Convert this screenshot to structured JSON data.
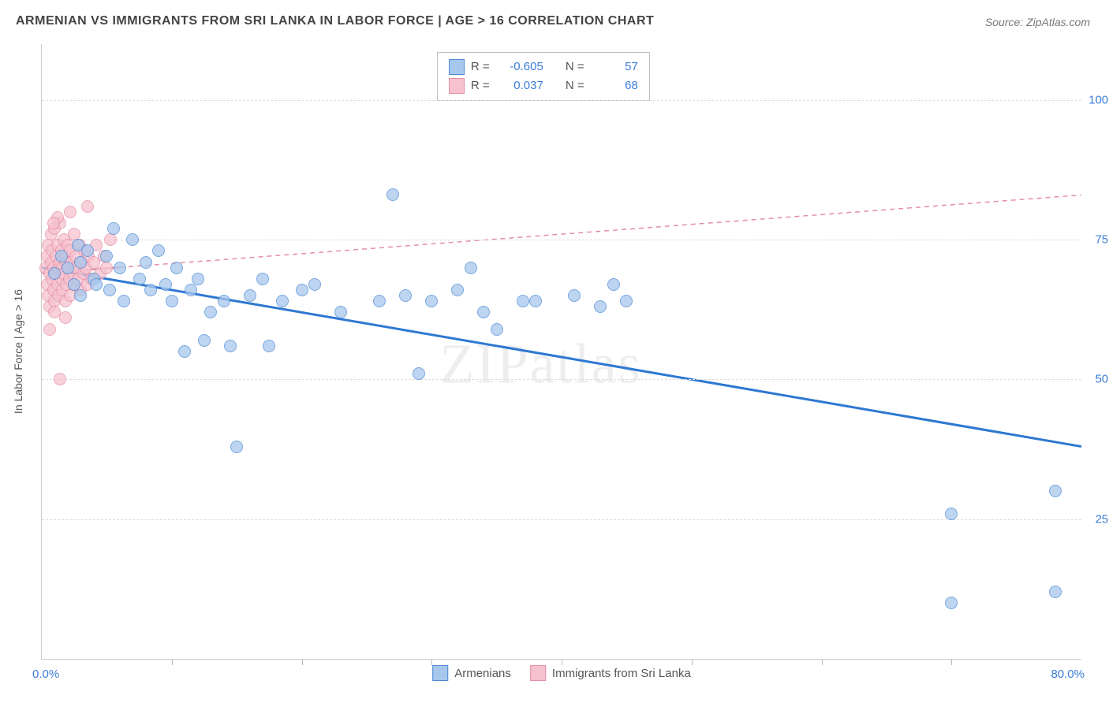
{
  "title": "ARMENIAN VS IMMIGRANTS FROM SRI LANKA IN LABOR FORCE | AGE > 16 CORRELATION CHART",
  "source": "Source: ZipAtlas.com",
  "watermark": "ZIPatlas",
  "y_axis_label": "In Labor Force | Age > 16",
  "x_range": [
    0,
    80
  ],
  "y_range": [
    0,
    110
  ],
  "x_start_label": "0.0%",
  "x_end_label": "80.0%",
  "x_tick_positions": [
    10,
    20,
    30,
    40,
    50,
    60,
    70
  ],
  "y_ticks": [
    {
      "v": 25,
      "label": "25.0%"
    },
    {
      "v": 50,
      "label": "50.0%"
    },
    {
      "v": 75,
      "label": "75.0%"
    },
    {
      "v": 100,
      "label": "100.0%"
    }
  ],
  "grid_h": [
    25,
    50,
    75,
    100
  ],
  "colors": {
    "blue_fill": "#a8c7ec",
    "blue_stroke": "#4d8bd6",
    "pink_fill": "#f6c2cf",
    "pink_stroke": "#e38fa6",
    "blue_line": "#2e78d2",
    "pink_line": "#e38fa6",
    "tick_text": "#3b7dd8"
  },
  "marker_radius": 8,
  "marker_stroke_width": 1,
  "marker_opacity": 0.75,
  "series": [
    {
      "name": "Armenians",
      "color_fill": "#a8c7ec",
      "color_stroke": "#4d8bd6",
      "R": "-0.605",
      "N": "57",
      "reg_line": {
        "x1": 0,
        "y1": 70,
        "x2": 80,
        "y2": 38,
        "dash": "0",
        "width": 3,
        "color": "#2e78d2",
        "solid_until_x": 45
      },
      "points": [
        [
          1,
          69
        ],
        [
          1.5,
          72
        ],
        [
          2,
          70
        ],
        [
          2.5,
          67
        ],
        [
          2.8,
          74
        ],
        [
          3,
          65
        ],
        [
          3,
          71
        ],
        [
          3.5,
          73
        ],
        [
          4,
          68
        ],
        [
          4.2,
          67
        ],
        [
          5,
          72
        ],
        [
          5.2,
          66
        ],
        [
          5.5,
          77
        ],
        [
          6,
          70
        ],
        [
          6.3,
          64
        ],
        [
          7,
          75
        ],
        [
          7.5,
          68
        ],
        [
          8,
          71
        ],
        [
          8.4,
          66
        ],
        [
          9,
          73
        ],
        [
          9.5,
          67
        ],
        [
          10,
          64
        ],
        [
          10.4,
          70
        ],
        [
          11,
          55
        ],
        [
          11.5,
          66
        ],
        [
          12,
          68
        ],
        [
          12.5,
          57
        ],
        [
          13,
          62
        ],
        [
          14,
          64
        ],
        [
          14.5,
          56
        ],
        [
          15,
          38
        ],
        [
          16,
          65
        ],
        [
          17,
          68
        ],
        [
          17.5,
          56
        ],
        [
          18.5,
          64
        ],
        [
          20,
          66
        ],
        [
          21,
          67
        ],
        [
          23,
          62
        ],
        [
          26,
          64
        ],
        [
          27,
          83
        ],
        [
          28,
          65
        ],
        [
          29,
          51
        ],
        [
          30,
          64
        ],
        [
          32,
          66
        ],
        [
          33,
          70
        ],
        [
          34,
          62
        ],
        [
          35,
          59
        ],
        [
          37,
          64
        ],
        [
          38,
          64
        ],
        [
          41,
          65
        ],
        [
          43,
          63
        ],
        [
          44,
          67
        ],
        [
          45,
          64
        ],
        [
          70,
          26
        ],
        [
          70,
          10
        ],
        [
          78,
          30
        ],
        [
          78,
          12
        ]
      ]
    },
    {
      "name": "Immigrants from Sri Lanka",
      "color_fill": "#f6c2cf",
      "color_stroke": "#e38fa6",
      "R": "0.037",
      "N": "68",
      "reg_line": {
        "x1": 0,
        "y1": 69,
        "x2": 80,
        "y2": 83,
        "dash": "6 5",
        "width": 1.5,
        "color": "#e38fa6",
        "solid_until_x": 6
      },
      "points": [
        [
          0.3,
          70
        ],
        [
          0.4,
          67
        ],
        [
          0.4,
          72
        ],
        [
          0.5,
          65
        ],
        [
          0.5,
          74
        ],
        [
          0.6,
          69
        ],
        [
          0.6,
          63
        ],
        [
          0.7,
          71
        ],
        [
          0.7,
          76
        ],
        [
          0.8,
          68
        ],
        [
          0.8,
          73
        ],
        [
          0.9,
          66
        ],
        [
          0.9,
          70
        ],
        [
          1.0,
          64
        ],
        [
          1.0,
          77
        ],
        [
          1.1,
          69
        ],
        [
          1.1,
          72
        ],
        [
          1.2,
          67
        ],
        [
          1.2,
          74
        ],
        [
          1.3,
          70
        ],
        [
          1.3,
          65
        ],
        [
          1.4,
          71
        ],
        [
          1.4,
          78
        ],
        [
          1.5,
          68
        ],
        [
          1.5,
          73
        ],
        [
          1.6,
          66
        ],
        [
          1.6,
          70
        ],
        [
          1.7,
          75
        ],
        [
          1.7,
          69
        ],
        [
          1.8,
          72
        ],
        [
          1.8,
          64
        ],
        [
          1.9,
          71
        ],
        [
          1.9,
          67
        ],
        [
          2.0,
          74
        ],
        [
          2.0,
          70
        ],
        [
          2.1,
          68
        ],
        [
          2.2,
          73
        ],
        [
          2.2,
          65
        ],
        [
          2.3,
          71
        ],
        [
          2.4,
          69
        ],
        [
          2.5,
          76
        ],
        [
          2.5,
          67
        ],
        [
          2.6,
          72
        ],
        [
          2.7,
          70
        ],
        [
          2.8,
          68
        ],
        [
          2.9,
          74
        ],
        [
          3.0,
          66
        ],
        [
          3.1,
          71
        ],
        [
          3.2,
          69
        ],
        [
          3.3,
          73
        ],
        [
          3.4,
          70
        ],
        [
          3.5,
          67
        ],
        [
          3.6,
          72
        ],
        [
          3.8,
          68
        ],
        [
          4.0,
          71
        ],
        [
          4.2,
          74
        ],
        [
          4.5,
          69
        ],
        [
          4.8,
          72
        ],
        [
          5.0,
          70
        ],
        [
          5.3,
          75
        ],
        [
          2.2,
          80
        ],
        [
          1.8,
          61
        ],
        [
          0.6,
          59
        ],
        [
          3.5,
          81
        ],
        [
          1.2,
          79
        ],
        [
          0.9,
          78
        ],
        [
          1.4,
          50
        ],
        [
          1.0,
          62
        ]
      ]
    }
  ],
  "legend_bottom": [
    {
      "label": "Armenians",
      "fill": "#a8c7ec",
      "stroke": "#4d8bd6"
    },
    {
      "label": "Immigrants from Sri Lanka",
      "fill": "#f6c2cf",
      "stroke": "#e38fa6"
    }
  ],
  "stat_labels": {
    "R": "R =",
    "N": "N ="
  }
}
